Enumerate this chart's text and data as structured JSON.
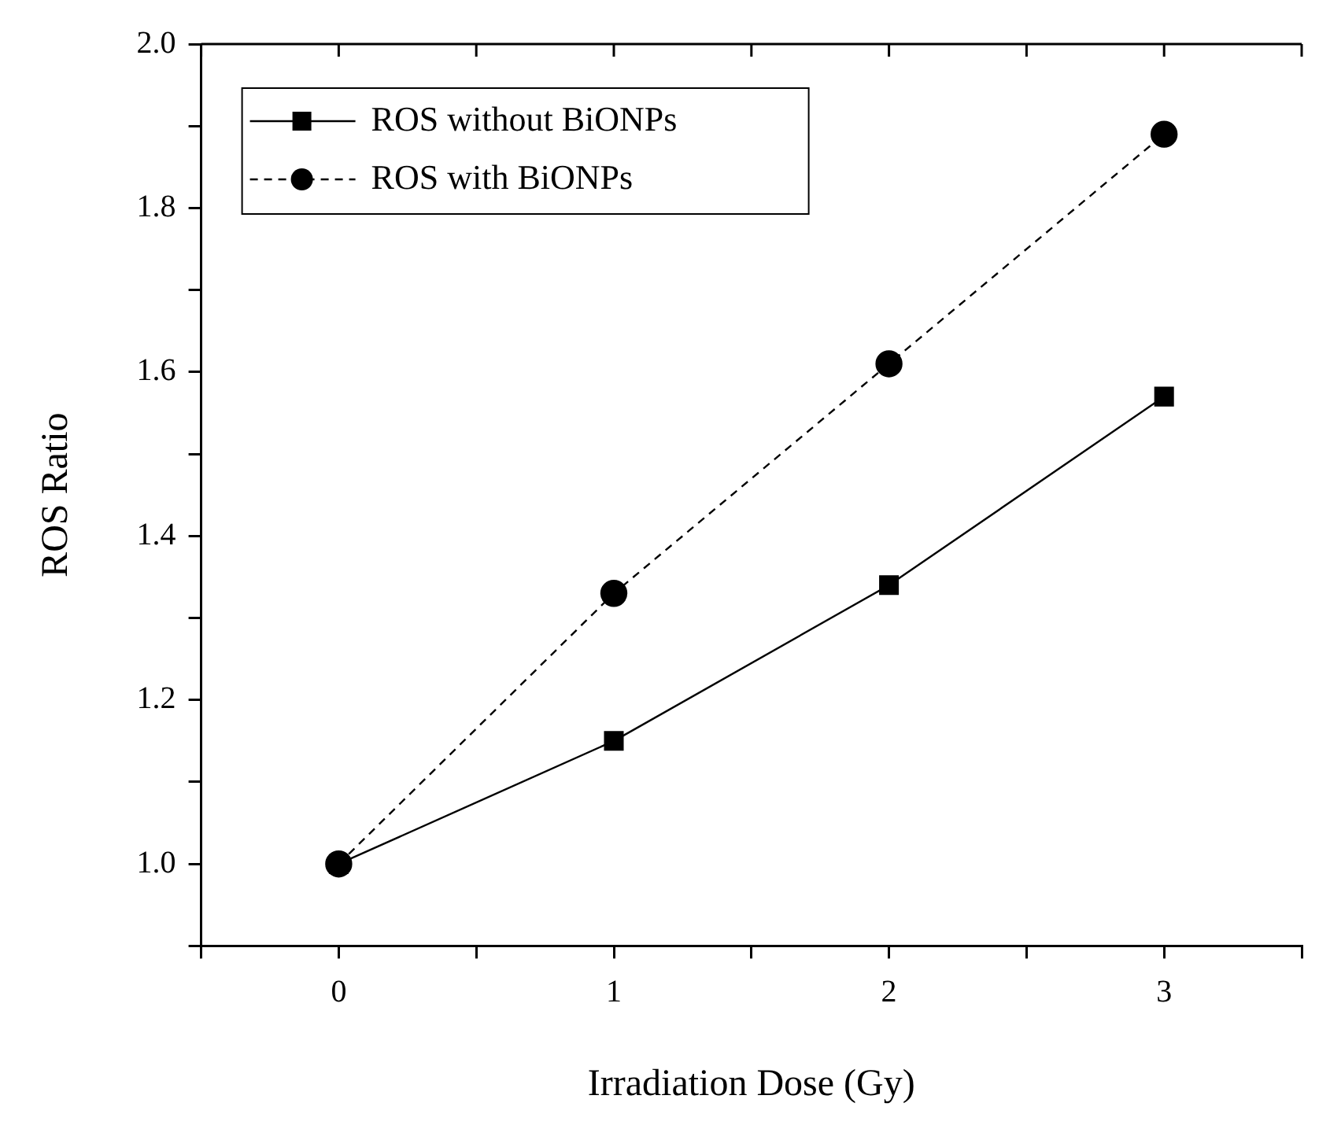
{
  "chart_data": {
    "type": "line",
    "xlabel": "Irradiation Dose (Gy)",
    "ylabel": "ROS Ratio",
    "x": [
      0,
      1,
      2,
      3
    ],
    "series": [
      {
        "name": "ROS without BiONPs",
        "color": "#000000",
        "values": [
          1.0,
          1.15,
          1.34,
          1.57
        ],
        "marker": "square",
        "line_style": "solid"
      },
      {
        "name": "ROS with BiONPs",
        "color": "#000000",
        "values": [
          1.0,
          1.33,
          1.61,
          1.89
        ],
        "marker": "circle",
        "line_style": "dashed"
      }
    ],
    "xlim": [
      -0.5,
      3.5
    ],
    "ylim": [
      0.9,
      2.0
    ],
    "xticks": [
      {
        "value": -0.5,
        "label": null
      },
      0,
      {
        "value": 0.5,
        "label": null
      },
      1,
      {
        "value": 1.5,
        "label": null
      },
      2,
      {
        "value": 2.5,
        "label": null
      },
      3,
      {
        "value": 3.5,
        "label": null
      }
    ],
    "yticks": [
      {
        "value": 0.9,
        "label": null
      },
      {
        "value": 1.0,
        "label": "1.0"
      },
      {
        "value": 1.1,
        "label": null
      },
      {
        "value": 1.2,
        "label": "1.2"
      },
      {
        "value": 1.3,
        "label": null
      },
      {
        "value": 1.4,
        "label": "1.4"
      },
      {
        "value": 1.5,
        "label": null
      },
      {
        "value": 1.6,
        "label": "1.6"
      },
      {
        "value": 1.7,
        "label": null
      },
      {
        "value": 1.8,
        "label": "1.8"
      },
      {
        "value": 1.9,
        "label": null
      },
      {
        "value": 2.0,
        "label": "2.0"
      }
    ],
    "grid": false,
    "legend": "top left"
  }
}
